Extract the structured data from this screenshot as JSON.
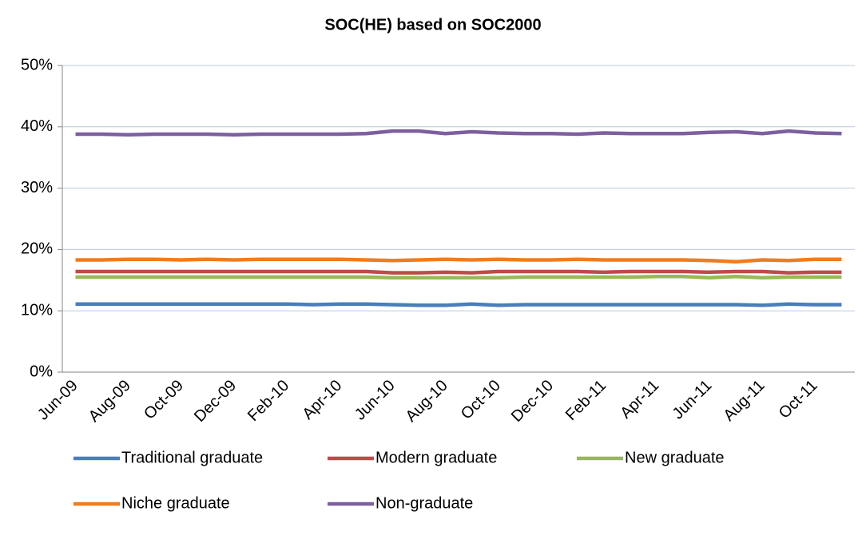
{
  "chart_data": {
    "type": "line",
    "title": "SOC(HE) based on SOC2000",
    "categories": [
      "Jun-09",
      null,
      "Aug-09",
      null,
      "Oct-09",
      null,
      "Dec-09",
      null,
      "Feb-10",
      null,
      "Apr-10",
      null,
      "Jun-10",
      null,
      "Aug-10",
      null,
      "Oct-10",
      null,
      "Dec-10",
      null,
      "Feb-11",
      null,
      "Apr-11",
      null,
      "Jun-11",
      null,
      "Aug-11",
      null,
      "Oct-11",
      null
    ],
    "series": [
      {
        "name": "Traditional graduate",
        "color": "#4a7ebb",
        "values": [
          11.1,
          11.1,
          11.1,
          11.1,
          11.1,
          11.1,
          11.1,
          11.1,
          11.1,
          11.0,
          11.1,
          11.1,
          11.0,
          10.9,
          10.9,
          11.1,
          10.9,
          11.0,
          11.0,
          11.0,
          11.0,
          11.0,
          11.0,
          11.0,
          11.0,
          11.0,
          10.9,
          11.1,
          11.0,
          11.0
        ]
      },
      {
        "name": "Modern graduate",
        "color": "#be4b48",
        "values": [
          16.4,
          16.4,
          16.4,
          16.4,
          16.4,
          16.4,
          16.4,
          16.4,
          16.4,
          16.4,
          16.4,
          16.4,
          16.2,
          16.2,
          16.3,
          16.2,
          16.4,
          16.4,
          16.4,
          16.4,
          16.3,
          16.4,
          16.4,
          16.4,
          16.3,
          16.4,
          16.4,
          16.2,
          16.3,
          16.3
        ]
      },
      {
        "name": "New graduate",
        "color": "#98b954",
        "values": [
          15.5,
          15.5,
          15.5,
          15.5,
          15.5,
          15.5,
          15.5,
          15.5,
          15.5,
          15.5,
          15.5,
          15.5,
          15.4,
          15.4,
          15.4,
          15.4,
          15.4,
          15.5,
          15.5,
          15.5,
          15.5,
          15.5,
          15.6,
          15.6,
          15.4,
          15.6,
          15.4,
          15.5,
          15.5,
          15.5
        ]
      },
      {
        "name": "Niche graduate",
        "color": "#f07c1e",
        "values": [
          18.3,
          18.3,
          18.4,
          18.4,
          18.3,
          18.4,
          18.3,
          18.4,
          18.4,
          18.4,
          18.4,
          18.3,
          18.2,
          18.3,
          18.4,
          18.3,
          18.4,
          18.3,
          18.3,
          18.4,
          18.3,
          18.3,
          18.3,
          18.3,
          18.2,
          18.0,
          18.3,
          18.2,
          18.4,
          18.4
        ]
      },
      {
        "name": "Non-graduate",
        "color": "#7d5fa0",
        "values": [
          38.8,
          38.8,
          38.7,
          38.8,
          38.8,
          38.8,
          38.7,
          38.8,
          38.8,
          38.8,
          38.8,
          38.9,
          39.3,
          39.3,
          38.9,
          39.2,
          39.0,
          38.9,
          38.9,
          38.8,
          39.0,
          38.9,
          38.9,
          38.9,
          39.1,
          39.2,
          38.9,
          39.3,
          39.0,
          38.9
        ]
      }
    ],
    "ylim": [
      0,
      50
    ],
    "yticks": [
      {
        "value": 0,
        "label": "0%"
      },
      {
        "value": 10,
        "label": "10%"
      },
      {
        "value": 20,
        "label": "20%"
      },
      {
        "value": 30,
        "label": "30%"
      },
      {
        "value": 40,
        "label": "40%"
      },
      {
        "value": 50,
        "label": "50%"
      }
    ],
    "grid": true
  }
}
